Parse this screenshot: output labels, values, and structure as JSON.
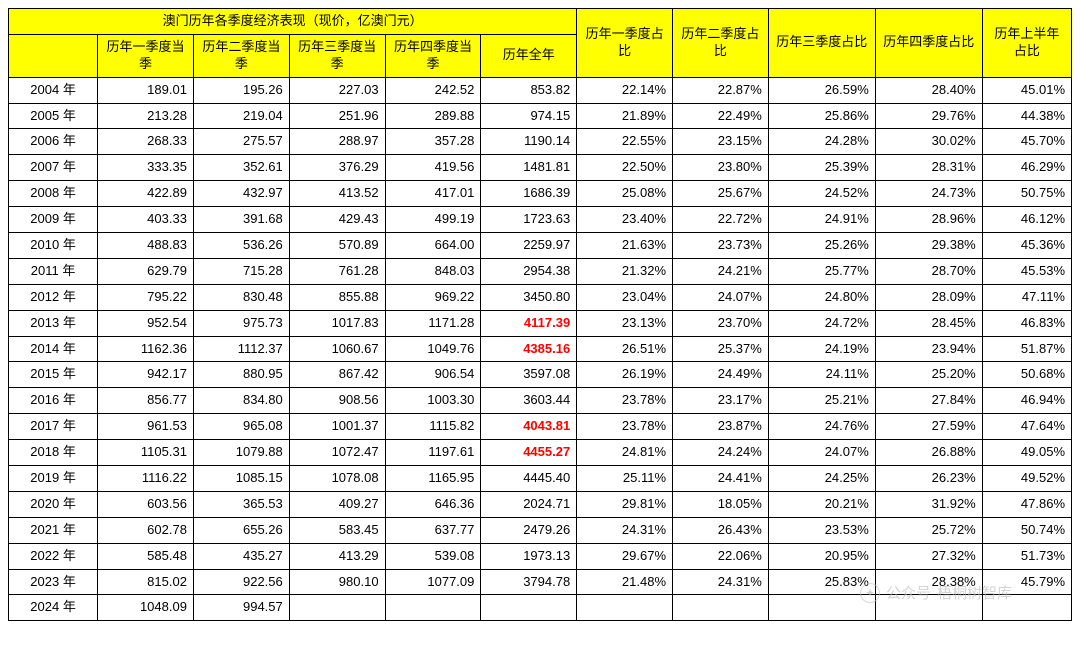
{
  "table": {
    "title": "澳门历年各季度经济表现（现价，亿澳门元）",
    "headers": {
      "year": "",
      "q1": "历年一季度当季",
      "q2": "历年二季度当季",
      "q3": "历年三季度当季",
      "q4": "历年四季度当季",
      "full_year": "历年全年",
      "q1_ratio": "历年一季度占比",
      "q2_ratio": "历年二季度占比",
      "q3_ratio": "历年三季度占比",
      "q4_ratio": "历年四季度占比",
      "h1_ratio": "历年上半年占比"
    },
    "col_widths": [
      "80",
      "86",
      "86",
      "86",
      "86",
      "86",
      "86",
      "86",
      "96",
      "96",
      "80"
    ],
    "highlight_color": "#ff0000",
    "header_bg": "#ffff00",
    "border_color": "#000000",
    "rows": [
      {
        "year": "2004 年",
        "q1": "189.01",
        "q2": "195.26",
        "q3": "227.03",
        "q4": "242.52",
        "fy": "853.82",
        "fy_hl": false,
        "r1": "22.14%",
        "r2": "22.87%",
        "r3": "26.59%",
        "r4": "28.40%",
        "rh": "45.01%"
      },
      {
        "year": "2005 年",
        "q1": "213.28",
        "q2": "219.04",
        "q3": "251.96",
        "q4": "289.88",
        "fy": "974.15",
        "fy_hl": false,
        "r1": "21.89%",
        "r2": "22.49%",
        "r3": "25.86%",
        "r4": "29.76%",
        "rh": "44.38%"
      },
      {
        "year": "2006 年",
        "q1": "268.33",
        "q2": "275.57",
        "q3": "288.97",
        "q4": "357.28",
        "fy": "1190.14",
        "fy_hl": false,
        "r1": "22.55%",
        "r2": "23.15%",
        "r3": "24.28%",
        "r4": "30.02%",
        "rh": "45.70%"
      },
      {
        "year": "2007 年",
        "q1": "333.35",
        "q2": "352.61",
        "q3": "376.29",
        "q4": "419.56",
        "fy": "1481.81",
        "fy_hl": false,
        "r1": "22.50%",
        "r2": "23.80%",
        "r3": "25.39%",
        "r4": "28.31%",
        "rh": "46.29%"
      },
      {
        "year": "2008 年",
        "q1": "422.89",
        "q2": "432.97",
        "q3": "413.52",
        "q4": "417.01",
        "fy": "1686.39",
        "fy_hl": false,
        "r1": "25.08%",
        "r2": "25.67%",
        "r3": "24.52%",
        "r4": "24.73%",
        "rh": "50.75%"
      },
      {
        "year": "2009 年",
        "q1": "403.33",
        "q2": "391.68",
        "q3": "429.43",
        "q4": "499.19",
        "fy": "1723.63",
        "fy_hl": false,
        "r1": "23.40%",
        "r2": "22.72%",
        "r3": "24.91%",
        "r4": "28.96%",
        "rh": "46.12%"
      },
      {
        "year": "2010 年",
        "q1": "488.83",
        "q2": "536.26",
        "q3": "570.89",
        "q4": "664.00",
        "fy": "2259.97",
        "fy_hl": false,
        "r1": "21.63%",
        "r2": "23.73%",
        "r3": "25.26%",
        "r4": "29.38%",
        "rh": "45.36%"
      },
      {
        "year": "2011 年",
        "q1": "629.79",
        "q2": "715.28",
        "q3": "761.28",
        "q4": "848.03",
        "fy": "2954.38",
        "fy_hl": false,
        "r1": "21.32%",
        "r2": "24.21%",
        "r3": "25.77%",
        "r4": "28.70%",
        "rh": "45.53%"
      },
      {
        "year": "2012 年",
        "q1": "795.22",
        "q2": "830.48",
        "q3": "855.88",
        "q4": "969.22",
        "fy": "3450.80",
        "fy_hl": false,
        "r1": "23.04%",
        "r2": "24.07%",
        "r3": "24.80%",
        "r4": "28.09%",
        "rh": "47.11%"
      },
      {
        "year": "2013 年",
        "q1": "952.54",
        "q2": "975.73",
        "q3": "1017.83",
        "q4": "1171.28",
        "fy": "4117.39",
        "fy_hl": true,
        "r1": "23.13%",
        "r2": "23.70%",
        "r3": "24.72%",
        "r4": "28.45%",
        "rh": "46.83%"
      },
      {
        "year": "2014 年",
        "q1": "1162.36",
        "q2": "1112.37",
        "q3": "1060.67",
        "q4": "1049.76",
        "fy": "4385.16",
        "fy_hl": true,
        "r1": "26.51%",
        "r2": "25.37%",
        "r3": "24.19%",
        "r4": "23.94%",
        "rh": "51.87%"
      },
      {
        "year": "2015 年",
        "q1": "942.17",
        "q2": "880.95",
        "q3": "867.42",
        "q4": "906.54",
        "fy": "3597.08",
        "fy_hl": false,
        "r1": "26.19%",
        "r2": "24.49%",
        "r3": "24.11%",
        "r4": "25.20%",
        "rh": "50.68%"
      },
      {
        "year": "2016 年",
        "q1": "856.77",
        "q2": "834.80",
        "q3": "908.56",
        "q4": "1003.30",
        "fy": "3603.44",
        "fy_hl": false,
        "r1": "23.78%",
        "r2": "23.17%",
        "r3": "25.21%",
        "r4": "27.84%",
        "rh": "46.94%"
      },
      {
        "year": "2017 年",
        "q1": "961.53",
        "q2": "965.08",
        "q3": "1001.37",
        "q4": "1115.82",
        "fy": "4043.81",
        "fy_hl": true,
        "r1": "23.78%",
        "r2": "23.87%",
        "r3": "24.76%",
        "r4": "27.59%",
        "rh": "47.64%"
      },
      {
        "year": "2018 年",
        "q1": "1105.31",
        "q2": "1079.88",
        "q3": "1072.47",
        "q4": "1197.61",
        "fy": "4455.27",
        "fy_hl": true,
        "r1": "24.81%",
        "r2": "24.24%",
        "r3": "24.07%",
        "r4": "26.88%",
        "rh": "49.05%"
      },
      {
        "year": "2019 年",
        "q1": "1116.22",
        "q2": "1085.15",
        "q3": "1078.08",
        "q4": "1165.95",
        "fy": "4445.40",
        "fy_hl": false,
        "r1": "25.11%",
        "r2": "24.41%",
        "r3": "24.25%",
        "r4": "26.23%",
        "rh": "49.52%"
      },
      {
        "year": "2020 年",
        "q1": "603.56",
        "q2": "365.53",
        "q3": "409.27",
        "q4": "646.36",
        "fy": "2024.71",
        "fy_hl": false,
        "r1": "29.81%",
        "r2": "18.05%",
        "r3": "20.21%",
        "r4": "31.92%",
        "rh": "47.86%"
      },
      {
        "year": "2021 年",
        "q1": "602.78",
        "q2": "655.26",
        "q3": "583.45",
        "q4": "637.77",
        "fy": "2479.26",
        "fy_hl": false,
        "r1": "24.31%",
        "r2": "26.43%",
        "r3": "23.53%",
        "r4": "25.72%",
        "rh": "50.74%"
      },
      {
        "year": "2022 年",
        "q1": "585.48",
        "q2": "435.27",
        "q3": "413.29",
        "q4": "539.08",
        "fy": "1973.13",
        "fy_hl": false,
        "r1": "29.67%",
        "r2": "22.06%",
        "r3": "20.95%",
        "r4": "27.32%",
        "rh": "51.73%"
      },
      {
        "year": "2023 年",
        "q1": "815.02",
        "q2": "922.56",
        "q3": "980.10",
        "q4": "1077.09",
        "fy": "3794.78",
        "fy_hl": false,
        "r1": "21.48%",
        "r2": "24.31%",
        "r3": "25.83%",
        "r4": "28.38%",
        "rh": "45.79%"
      },
      {
        "year": "2024 年",
        "q1": "1048.09",
        "q2": "994.57",
        "q3": "",
        "q4": "",
        "fy": "",
        "fy_hl": false,
        "r1": "",
        "r2": "",
        "r3": "",
        "r4": "",
        "rh": ""
      }
    ]
  },
  "watermark": {
    "label1": "公众号",
    "label2": "梧桐树智库"
  }
}
